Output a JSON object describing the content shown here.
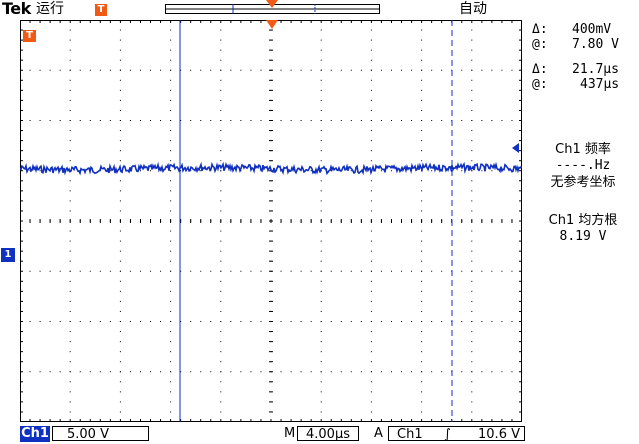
{
  "header": {
    "brand": "Tek",
    "run_state": "运行",
    "trigger_marker": "T",
    "acquire_mode": "自动"
  },
  "cursor_readouts": {
    "voltage_delta_label": "Δ:",
    "voltage_delta": "400mV",
    "voltage_at_label": "@:",
    "voltage_at": "7.80 V",
    "time_delta_label": "Δ:",
    "time_delta": "21.7µs",
    "time_at_label": "@:",
    "time_at": "437µs"
  },
  "measurements": {
    "freq_title": "Ch1 频率",
    "freq_value": "----.Hz",
    "freq_note": "无参考坐标",
    "rms_title": "Ch1 均方根",
    "rms_value": "8.19 V"
  },
  "screen": {
    "trigger_pos_marker": "T",
    "channel_marker": "1",
    "trace_color": "#1030c0",
    "accent_color": "#f05a14",
    "grid_color": "#000000",
    "trace_level_fraction": 0.37
  },
  "footer": {
    "channel_label": "Ch1",
    "volts_per_div": "5.00 V",
    "timebase_label": "M",
    "time_per_div": "4.00µs",
    "trigger_source_label": "A",
    "trigger_channel": "Ch1",
    "trigger_slope": "∫",
    "trigger_level": "10.6 V"
  }
}
